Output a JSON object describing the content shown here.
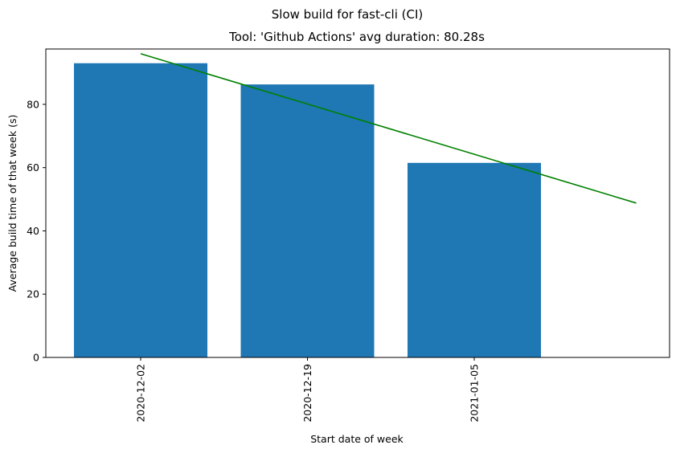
{
  "chart_data": {
    "type": "bar",
    "suptitle": "Slow build for fast-cli (CI)",
    "title": "Tool: 'Github Actions' avg duration: 80.28s",
    "xlabel": "Start date of week",
    "ylabel": "Average build time of that week (s)",
    "categories": [
      "2020-12-02",
      "2020-12-19",
      "2021-01-05"
    ],
    "values": [
      93.0,
      86.3,
      61.5
    ],
    "ylim": [
      0,
      97.5
    ],
    "yticks": [
      0,
      20,
      40,
      60,
      80
    ],
    "bar_color": "#1f77b4",
    "trend_line": {
      "color": "#008000",
      "start": {
        "x_index": 0,
        "y": 96.0
      },
      "end": {
        "x_index": 3,
        "y": 48.8
      }
    },
    "grid": false,
    "legend": "none"
  }
}
